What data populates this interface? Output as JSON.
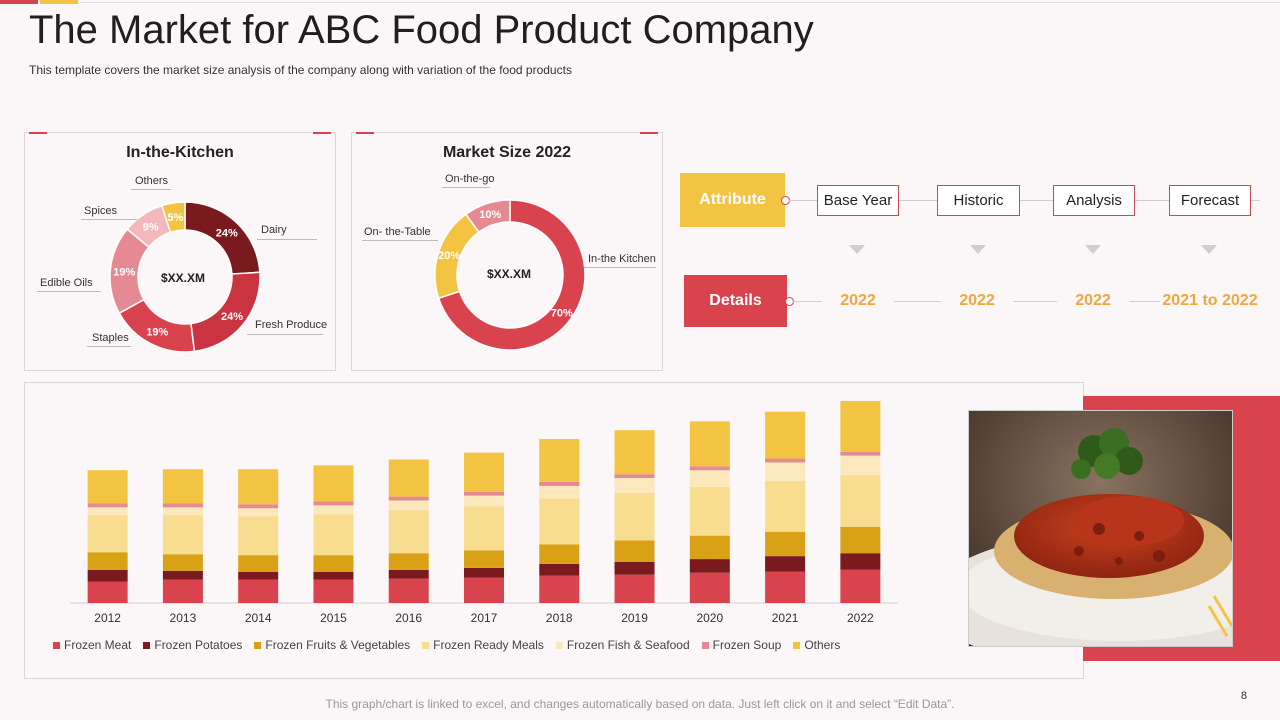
{
  "slide": {
    "title": "The Market for ABC Food Product Company",
    "subtitle": "This template covers the market size analysis of the company along with variation of the food products",
    "footer": "This graph/chart is linked to excel, and changes automatically based on data. Just left click on it and select “Edit Data”.",
    "page_number": "8"
  },
  "colors": {
    "red": "#d9434e",
    "dark_red": "#7a1a1e",
    "mustard": "#d9a216",
    "light_yellow": "#f8dc8f",
    "pale_yellow": "#fbe9bd",
    "pink": "#e58a92",
    "yellow": "#f3c342",
    "accent_orange": "#efa83e"
  },
  "attributes": {
    "attribute_label": "Attribute",
    "details_label": "Details",
    "items": [
      {
        "name": "Base Year",
        "detail": "2022"
      },
      {
        "name": "Historic",
        "detail": "2022"
      },
      {
        "name": "Analysis",
        "detail": "2022"
      },
      {
        "name": "Forecast",
        "detail": "2021 to 2022"
      }
    ]
  },
  "chart_data": [
    {
      "type": "pie",
      "donut": true,
      "title": "In-the-Kitchen",
      "center_label": "$XX.XM",
      "slices": [
        {
          "label": "Dairy",
          "value": 24,
          "display": "24%",
          "color": "#7a1a1e"
        },
        {
          "label": "Fresh Produce",
          "value": 24,
          "display": "24%",
          "color": "#c93440"
        },
        {
          "label": "Staples",
          "value": 19,
          "display": "19%",
          "color": "#d9434e"
        },
        {
          "label": "Edible  Oils",
          "value": 19,
          "display": "19%",
          "color": "#e58a92"
        },
        {
          "label": "Spices",
          "value": 9,
          "display": "9%",
          "color": "#f2b8bc"
        },
        {
          "label": "Others",
          "value": 5,
          "display": "5%",
          "color": "#f3c342"
        }
      ]
    },
    {
      "type": "pie",
      "donut": true,
      "title": "Market Size 2022",
      "center_label": "$XX.XM",
      "slices": [
        {
          "label": "In-the Kitchen",
          "value": 70,
          "display": "70%",
          "color": "#d9434e"
        },
        {
          "label": "On- the-Table",
          "value": 20,
          "display": "20%",
          "color": "#f3c342"
        },
        {
          "label": "On-the-go",
          "value": 10,
          "display": "10%",
          "color": "#e58a92"
        }
      ]
    },
    {
      "type": "bar",
      "stacked": true,
      "title": "",
      "categories": [
        "2012",
        "2013",
        "2014",
        "2015",
        "2016",
        "2017",
        "2018",
        "2019",
        "2020",
        "2021",
        "2022"
      ],
      "ylim": [
        0,
        210
      ],
      "series": [
        {
          "name": "Frozen Meat",
          "color": "#d9434e",
          "values": [
            22,
            24,
            24,
            24,
            25,
            26,
            28,
            29,
            31,
            32,
            34
          ]
        },
        {
          "name": "Frozen Potatoes",
          "color": "#7a1a1e",
          "values": [
            12,
            9,
            8,
            8,
            9,
            10,
            12,
            13,
            14,
            16,
            17
          ]
        },
        {
          "name": "Frozen Fruits & Vegetables",
          "color": "#d9a216",
          "values": [
            18,
            17,
            17,
            17,
            17,
            18,
            20,
            22,
            24,
            25,
            27
          ]
        },
        {
          "name": "Frozen Ready Meals",
          "color": "#f8dc8f",
          "values": [
            38,
            40,
            40,
            42,
            44,
            45,
            47,
            49,
            50,
            52,
            53
          ]
        },
        {
          "name": "Frozen Fish & Seafood",
          "color": "#fbe9bd",
          "values": [
            8,
            8,
            8,
            9,
            10,
            11,
            13,
            15,
            17,
            19,
            20
          ]
        },
        {
          "name": "Frozen Soup",
          "color": "#e58a92",
          "values": [
            4,
            4,
            4,
            4,
            4,
            4,
            4,
            4,
            4,
            4,
            4
          ]
        },
        {
          "name": "Others",
          "color": "#f3c342",
          "values": [
            34,
            35,
            36,
            37,
            38,
            40,
            44,
            45,
            46,
            48,
            52
          ]
        }
      ]
    }
  ]
}
